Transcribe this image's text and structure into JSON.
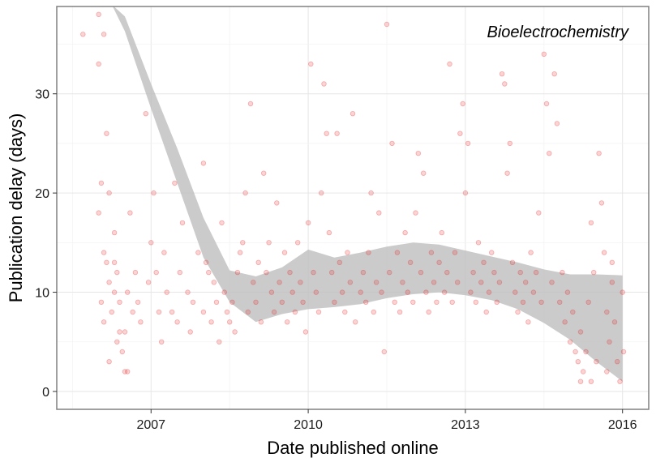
{
  "chart_data": {
    "type": "scatter",
    "annotation": "Bioelectrochemistry",
    "xlabel": "Date published online",
    "ylabel": "Publication delay (days)",
    "xlim": [
      2005.2,
      2016.5
    ],
    "ylim": [
      -1.8,
      38.8
    ],
    "xticks": [
      2007,
      2010,
      2013,
      2016
    ],
    "yticks": [
      0,
      10,
      20,
      30
    ],
    "grid": true,
    "point_color": "#e8292a",
    "band_color": "#bdbdbd",
    "points": [
      [
        2005.7,
        36
      ],
      [
        2006.0,
        38
      ],
      [
        2006.0,
        33
      ],
      [
        2006.05,
        21
      ],
      [
        2006.0,
        18
      ],
      [
        2006.1,
        36
      ],
      [
        2006.15,
        26
      ],
      [
        2006.2,
        20
      ],
      [
        2006.1,
        14
      ],
      [
        2006.15,
        13
      ],
      [
        2006.2,
        11
      ],
      [
        2006.05,
        9
      ],
      [
        2006.1,
        7
      ],
      [
        2006.25,
        8
      ],
      [
        2006.3,
        10
      ],
      [
        2006.35,
        5
      ],
      [
        2006.4,
        6
      ],
      [
        2006.45,
        4
      ],
      [
        2006.5,
        2
      ],
      [
        2006.55,
        2
      ],
      [
        2006.6,
        18
      ],
      [
        2006.7,
        12
      ],
      [
        2006.75,
        9
      ],
      [
        2006.8,
        7
      ],
      [
        2006.3,
        16
      ],
      [
        2006.35,
        12
      ],
      [
        2006.4,
        9
      ],
      [
        2006.5,
        6
      ],
      [
        2006.55,
        10
      ],
      [
        2006.65,
        8
      ],
      [
        2006.2,
        3
      ],
      [
        2006.3,
        13
      ],
      [
        2006.9,
        28
      ],
      [
        2006.95,
        11
      ],
      [
        2007.0,
        15
      ],
      [
        2007.05,
        20
      ],
      [
        2007.1,
        12
      ],
      [
        2007.15,
        8
      ],
      [
        2007.2,
        5
      ],
      [
        2007.25,
        14
      ],
      [
        2007.3,
        10
      ],
      [
        2007.4,
        8
      ],
      [
        2007.45,
        21
      ],
      [
        2007.5,
        7
      ],
      [
        2007.55,
        12
      ],
      [
        2007.6,
        17
      ],
      [
        2007.7,
        10
      ],
      [
        2007.75,
        6
      ],
      [
        2007.8,
        9
      ],
      [
        2007.9,
        14
      ],
      [
        2008.0,
        8
      ],
      [
        2008.0,
        23
      ],
      [
        2008.05,
        13
      ],
      [
        2008.1,
        12
      ],
      [
        2008.15,
        7
      ],
      [
        2008.2,
        11
      ],
      [
        2008.25,
        9
      ],
      [
        2008.3,
        5
      ],
      [
        2008.35,
        17
      ],
      [
        2008.4,
        10
      ],
      [
        2008.45,
        8
      ],
      [
        2008.5,
        7
      ],
      [
        2008.55,
        9
      ],
      [
        2008.6,
        6
      ],
      [
        2008.65,
        12
      ],
      [
        2008.7,
        14
      ],
      [
        2008.75,
        15
      ],
      [
        2008.8,
        20
      ],
      [
        2008.85,
        8
      ],
      [
        2008.9,
        29
      ],
      [
        2008.95,
        11
      ],
      [
        2009.0,
        9
      ],
      [
        2009.05,
        13
      ],
      [
        2009.1,
        7
      ],
      [
        2009.15,
        22
      ],
      [
        2009.2,
        12
      ],
      [
        2009.25,
        15
      ],
      [
        2009.3,
        10
      ],
      [
        2009.35,
        8
      ],
      [
        2009.4,
        19
      ],
      [
        2009.45,
        11
      ],
      [
        2009.5,
        9
      ],
      [
        2009.55,
        14
      ],
      [
        2009.6,
        7
      ],
      [
        2009.65,
        12
      ],
      [
        2009.7,
        10
      ],
      [
        2009.75,
        8
      ],
      [
        2009.8,
        15
      ],
      [
        2009.85,
        11
      ],
      [
        2009.9,
        9
      ],
      [
        2009.95,
        6
      ],
      [
        2010.0,
        17
      ],
      [
        2010.05,
        33
      ],
      [
        2010.1,
        12
      ],
      [
        2010.15,
        10
      ],
      [
        2010.2,
        8
      ],
      [
        2010.25,
        20
      ],
      [
        2010.3,
        31
      ],
      [
        2010.35,
        26
      ],
      [
        2010.4,
        16
      ],
      [
        2010.45,
        12
      ],
      [
        2010.5,
        9
      ],
      [
        2010.55,
        26
      ],
      [
        2010.6,
        13
      ],
      [
        2010.65,
        10
      ],
      [
        2010.7,
        8
      ],
      [
        2010.75,
        14
      ],
      [
        2010.8,
        11
      ],
      [
        2010.85,
        28
      ],
      [
        2010.9,
        7
      ],
      [
        2011.0,
        10
      ],
      [
        2011.05,
        12
      ],
      [
        2011.1,
        9
      ],
      [
        2011.15,
        14
      ],
      [
        2011.2,
        20
      ],
      [
        2011.25,
        8
      ],
      [
        2011.3,
        11
      ],
      [
        2011.35,
        18
      ],
      [
        2011.4,
        10
      ],
      [
        2011.45,
        4
      ],
      [
        2011.5,
        37
      ],
      [
        2011.55,
        12
      ],
      [
        2011.6,
        25
      ],
      [
        2011.65,
        9
      ],
      [
        2011.7,
        14
      ],
      [
        2011.75,
        8
      ],
      [
        2011.8,
        11
      ],
      [
        2011.85,
        16
      ],
      [
        2011.9,
        10
      ],
      [
        2011.95,
        13
      ],
      [
        2012.0,
        9
      ],
      [
        2012.05,
        18
      ],
      [
        2012.1,
        24
      ],
      [
        2012.15,
        12
      ],
      [
        2012.2,
        22
      ],
      [
        2012.25,
        10
      ],
      [
        2012.3,
        8
      ],
      [
        2012.35,
        14
      ],
      [
        2012.4,
        11
      ],
      [
        2012.45,
        9
      ],
      [
        2012.5,
        13
      ],
      [
        2012.55,
        16
      ],
      [
        2012.6,
        10
      ],
      [
        2012.65,
        12
      ],
      [
        2012.7,
        33
      ],
      [
        2012.75,
        9
      ],
      [
        2012.8,
        14
      ],
      [
        2012.85,
        11
      ],
      [
        2012.9,
        26
      ],
      [
        2012.95,
        29
      ],
      [
        2013.0,
        20
      ],
      [
        2013.05,
        25
      ],
      [
        2013.1,
        10
      ],
      [
        2013.15,
        12
      ],
      [
        2013.2,
        9
      ],
      [
        2013.25,
        15
      ],
      [
        2013.3,
        11
      ],
      [
        2013.35,
        13
      ],
      [
        2013.4,
        8
      ],
      [
        2013.45,
        10
      ],
      [
        2013.5,
        14
      ],
      [
        2013.55,
        12
      ],
      [
        2013.6,
        9
      ],
      [
        2013.65,
        11
      ],
      [
        2013.7,
        32
      ],
      [
        2013.75,
        31
      ],
      [
        2013.8,
        22
      ],
      [
        2013.85,
        25
      ],
      [
        2013.9,
        13
      ],
      [
        2013.95,
        10
      ],
      [
        2014.0,
        8
      ],
      [
        2014.05,
        12
      ],
      [
        2014.1,
        9
      ],
      [
        2014.15,
        11
      ],
      [
        2014.2,
        7
      ],
      [
        2014.25,
        14
      ],
      [
        2014.3,
        10
      ],
      [
        2014.35,
        12
      ],
      [
        2014.4,
        18
      ],
      [
        2014.45,
        9
      ],
      [
        2014.5,
        34
      ],
      [
        2014.55,
        29
      ],
      [
        2014.6,
        24
      ],
      [
        2014.65,
        11
      ],
      [
        2014.7,
        32
      ],
      [
        2014.75,
        27
      ],
      [
        2014.8,
        9
      ],
      [
        2014.85,
        12
      ],
      [
        2014.9,
        7
      ],
      [
        2014.95,
        10
      ],
      [
        2015.0,
        5
      ],
      [
        2015.05,
        8
      ],
      [
        2015.1,
        4
      ],
      [
        2015.15,
        3
      ],
      [
        2015.2,
        6
      ],
      [
        2015.25,
        2
      ],
      [
        2015.3,
        4
      ],
      [
        2015.35,
        9
      ],
      [
        2015.4,
        17
      ],
      [
        2015.45,
        12
      ],
      [
        2015.5,
        3
      ],
      [
        2015.55,
        24
      ],
      [
        2015.6,
        19
      ],
      [
        2015.65,
        14
      ],
      [
        2015.7,
        8
      ],
      [
        2015.75,
        5
      ],
      [
        2015.8,
        11
      ],
      [
        2015.85,
        7
      ],
      [
        2015.9,
        3
      ],
      [
        2015.95,
        1
      ],
      [
        2016.0,
        10
      ],
      [
        2016.02,
        4
      ],
      [
        2015.2,
        1
      ],
      [
        2015.4,
        1
      ],
      [
        2015.8,
        13
      ],
      [
        2015.7,
        2
      ]
    ],
    "smooth_band": {
      "x": [
        2006.25,
        2006.5,
        2007.0,
        2007.5,
        2008.0,
        2008.5,
        2009.0,
        2009.5,
        2010.0,
        2010.5,
        2011.0,
        2011.5,
        2012.0,
        2012.5,
        2013.0,
        2013.5,
        2014.0,
        2014.5,
        2015.0,
        2015.5,
        2016.0
      ],
      "upper": [
        39,
        37.8,
        31,
        24.5,
        17.5,
        12.2,
        11.6,
        12.5,
        14.3,
        13.5,
        14.0,
        14.6,
        15.0,
        14.8,
        14.2,
        13.6,
        13.0,
        12.3,
        11.8,
        11.8,
        11.7
      ],
      "lower": [
        39,
        36.3,
        28.5,
        21.0,
        13.5,
        9.0,
        7.0,
        7.8,
        8.3,
        8.5,
        8.8,
        9.4,
        9.8,
        10.0,
        9.7,
        9.2,
        8.3,
        6.9,
        5.2,
        3.0,
        1.0
      ]
    }
  }
}
